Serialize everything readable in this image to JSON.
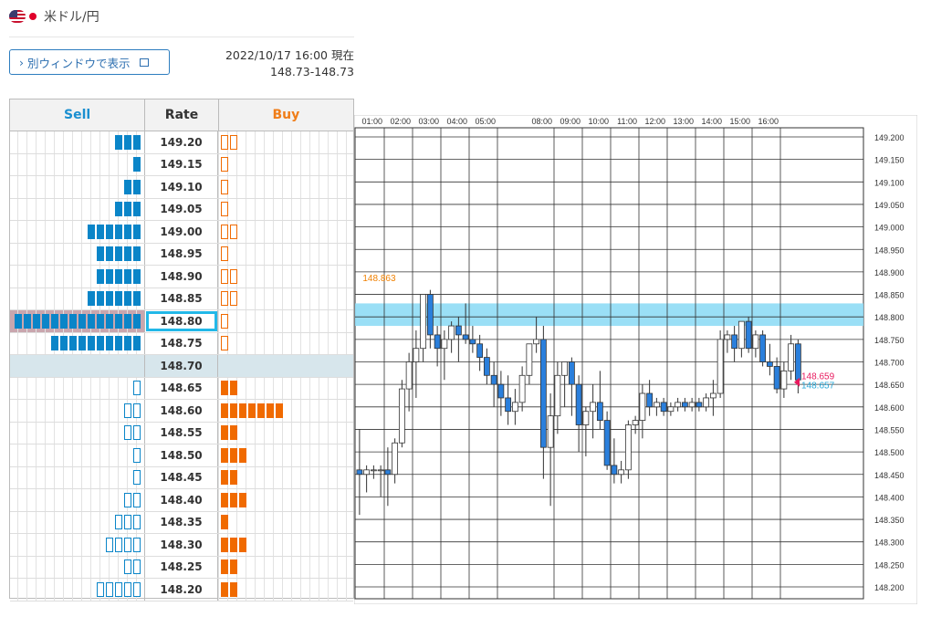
{
  "header": {
    "pair": "米ドル/円",
    "flag_left": "us-flag-icon",
    "flag_right": "jp-flag-icon"
  },
  "popout_button": {
    "label": "別ウィンドウで表示",
    "chevron": "›",
    "icon": "external-window-icon"
  },
  "timestamp": {
    "datetime": "2022/10/17 16:00 現在",
    "rate": "148.73-148.73"
  },
  "orderbook": {
    "headers": {
      "sell": "Sell",
      "rate": "Rate",
      "buy": "Buy"
    },
    "colors": {
      "sell": "#0a85c8",
      "buy": "#f06a00",
      "current": "#22b8e8"
    },
    "rows": [
      {
        "rate": "149.20",
        "sell": 3,
        "sell_filled": true,
        "buy": 2,
        "buy_filled": false
      },
      {
        "rate": "149.15",
        "sell": 1,
        "sell_filled": true,
        "buy": 1,
        "buy_filled": false
      },
      {
        "rate": "149.10",
        "sell": 2,
        "sell_filled": true,
        "buy": 1,
        "buy_filled": false
      },
      {
        "rate": "149.05",
        "sell": 3,
        "sell_filled": true,
        "buy": 1,
        "buy_filled": false
      },
      {
        "rate": "149.00",
        "sell": 6,
        "sell_filled": true,
        "buy": 2,
        "buy_filled": false
      },
      {
        "rate": "148.95",
        "sell": 5,
        "sell_filled": true,
        "buy": 1,
        "buy_filled": false
      },
      {
        "rate": "148.90",
        "sell": 5,
        "sell_filled": true,
        "buy": 2,
        "buy_filled": false
      },
      {
        "rate": "148.85",
        "sell": 6,
        "sell_filled": true,
        "buy": 2,
        "buy_filled": false
      },
      {
        "rate": "148.80",
        "sell": 14,
        "sell_filled": true,
        "buy": 1,
        "buy_filled": false,
        "current": true
      },
      {
        "rate": "148.75",
        "sell": 10,
        "sell_filled": true,
        "buy": 1,
        "buy_filled": false
      },
      {
        "rate": "148.70",
        "sell": 0,
        "sell_filled": true,
        "buy": 0,
        "buy_filled": true,
        "mid": true
      },
      {
        "rate": "148.65",
        "sell": 1,
        "sell_filled": false,
        "buy": 2,
        "buy_filled": true
      },
      {
        "rate": "148.60",
        "sell": 2,
        "sell_filled": false,
        "buy": 7,
        "buy_filled": true
      },
      {
        "rate": "148.55",
        "sell": 2,
        "sell_filled": false,
        "buy": 2,
        "buy_filled": true
      },
      {
        "rate": "148.50",
        "sell": 1,
        "sell_filled": false,
        "buy": 3,
        "buy_filled": true
      },
      {
        "rate": "148.45",
        "sell": 1,
        "sell_filled": false,
        "buy": 2,
        "buy_filled": true
      },
      {
        "rate": "148.40",
        "sell": 2,
        "sell_filled": false,
        "buy": 3,
        "buy_filled": true
      },
      {
        "rate": "148.35",
        "sell": 3,
        "sell_filled": false,
        "buy": 1,
        "buy_filled": true
      },
      {
        "rate": "148.30",
        "sell": 4,
        "sell_filled": false,
        "buy": 3,
        "buy_filled": true
      },
      {
        "rate": "148.25",
        "sell": 2,
        "sell_filled": false,
        "buy": 2,
        "buy_filled": true
      },
      {
        "rate": "148.20",
        "sell": 5,
        "sell_filled": false,
        "buy": 2,
        "buy_filled": true
      }
    ]
  },
  "chart_data": {
    "type": "candlestick",
    "x_ticks": [
      "01:00",
      "02:00",
      "03:00",
      "04:00",
      "05:00",
      "08:00",
      "09:00",
      "10:00",
      "11:00",
      "12:00",
      "13:00",
      "14:00",
      "15:00",
      "16:00"
    ],
    "x_tick_index": [
      4,
      8,
      12,
      16,
      20,
      28,
      32,
      36,
      40,
      44,
      48,
      52,
      56,
      60
    ],
    "y_ticks": [
      "149.200",
      "149.150",
      "149.100",
      "149.050",
      "149.000",
      "148.950",
      "148.900",
      "148.850",
      "148.800",
      "148.750",
      "148.700",
      "148.650",
      "148.600",
      "148.550",
      "148.500",
      "148.450",
      "148.400",
      "148.350",
      "148.300",
      "148.250",
      "148.200"
    ],
    "ylim": [
      148.18,
      149.22
    ],
    "grid": true,
    "band": [
      148.78,
      148.83
    ],
    "annotations": [
      {
        "text": "148.863",
        "index": 6,
        "value": 148.863,
        "color": "#f08000"
      },
      {
        "text": "148.659",
        "value": 148.659,
        "color": "#e8195e"
      },
      {
        "text": "148.657",
        "value": 148.657,
        "color": "#29a8d8"
      }
    ],
    "colors": {
      "up": "#ffffff",
      "down": "#2a7fdc",
      "band": "#8fdcf5"
    },
    "candles": [
      [
        148.46,
        148.55,
        148.36,
        148.45
      ],
      [
        148.45,
        148.47,
        148.41,
        148.46
      ],
      [
        148.46,
        148.47,
        148.44,
        148.46
      ],
      [
        148.46,
        148.47,
        148.4,
        148.46
      ],
      [
        148.46,
        148.51,
        148.38,
        148.45
      ],
      [
        148.45,
        148.53,
        148.43,
        148.52
      ],
      [
        148.52,
        148.66,
        148.51,
        148.64
      ],
      [
        148.64,
        148.72,
        148.59,
        148.7
      ],
      [
        148.7,
        148.77,
        148.62,
        148.73
      ],
      [
        148.73,
        148.85,
        148.7,
        148.85
      ],
      [
        148.85,
        148.86,
        148.73,
        148.76
      ],
      [
        148.76,
        148.78,
        148.69,
        148.73
      ],
      [
        148.73,
        148.77,
        148.66,
        148.75
      ],
      [
        148.75,
        148.79,
        148.72,
        148.78
      ],
      [
        148.78,
        148.8,
        148.7,
        148.76
      ],
      [
        148.76,
        148.83,
        148.74,
        148.75
      ],
      [
        148.75,
        148.78,
        148.72,
        148.74
      ],
      [
        148.74,
        148.76,
        148.68,
        148.71
      ],
      [
        148.71,
        148.73,
        148.65,
        148.67
      ],
      [
        148.67,
        148.7,
        148.6,
        148.65
      ],
      [
        148.65,
        148.68,
        148.58,
        148.62
      ],
      [
        148.62,
        148.67,
        148.56,
        148.59
      ],
      [
        148.59,
        148.64,
        148.56,
        148.61
      ],
      [
        148.61,
        148.69,
        148.59,
        148.67
      ],
      [
        148.67,
        148.74,
        148.65,
        148.74
      ],
      [
        148.74,
        148.8,
        148.72,
        148.75
      ],
      [
        148.75,
        148.78,
        148.44,
        148.51
      ],
      [
        148.51,
        148.63,
        148.38,
        148.58
      ],
      [
        148.58,
        148.7,
        148.54,
        148.67
      ],
      [
        148.67,
        148.7,
        148.6,
        148.7
      ],
      [
        148.7,
        148.71,
        148.58,
        148.65
      ],
      [
        148.65,
        148.67,
        148.5,
        148.56
      ],
      [
        148.56,
        148.6,
        148.49,
        148.59
      ],
      [
        148.59,
        148.65,
        148.53,
        148.61
      ],
      [
        148.61,
        148.68,
        148.55,
        148.57
      ],
      [
        148.57,
        148.59,
        148.46,
        148.47
      ],
      [
        148.47,
        148.53,
        148.43,
        148.45
      ],
      [
        148.45,
        148.48,
        148.43,
        148.46
      ],
      [
        148.46,
        148.57,
        148.44,
        148.56
      ],
      [
        148.56,
        148.58,
        148.54,
        148.57
      ],
      [
        148.57,
        148.65,
        148.53,
        148.63
      ],
      [
        148.63,
        148.66,
        148.58,
        148.6
      ],
      [
        148.6,
        148.62,
        148.58,
        148.61
      ],
      [
        148.61,
        148.62,
        148.58,
        148.59
      ],
      [
        148.59,
        148.61,
        148.58,
        148.6
      ],
      [
        148.6,
        148.62,
        148.59,
        148.61
      ],
      [
        148.61,
        148.62,
        148.59,
        148.6
      ],
      [
        148.6,
        148.62,
        148.59,
        148.61
      ],
      [
        148.61,
        148.62,
        148.59,
        148.6
      ],
      [
        148.6,
        148.63,
        148.59,
        148.62
      ],
      [
        148.62,
        148.66,
        148.58,
        148.63
      ],
      [
        148.63,
        148.77,
        148.62,
        148.75
      ],
      [
        148.75,
        148.77,
        148.72,
        148.76
      ],
      [
        148.76,
        148.78,
        148.7,
        148.73
      ],
      [
        148.73,
        148.79,
        148.71,
        148.79
      ],
      [
        148.79,
        148.8,
        148.72,
        148.73
      ],
      [
        148.73,
        148.77,
        148.71,
        148.76
      ],
      [
        148.76,
        148.77,
        148.69,
        148.7
      ],
      [
        148.7,
        148.74,
        148.67,
        148.69
      ],
      [
        148.69,
        148.71,
        148.63,
        148.64
      ],
      [
        148.64,
        148.7,
        148.62,
        148.68
      ],
      [
        148.68,
        148.76,
        148.66,
        148.74
      ],
      [
        148.74,
        148.75,
        148.63,
        148.66
      ]
    ]
  }
}
